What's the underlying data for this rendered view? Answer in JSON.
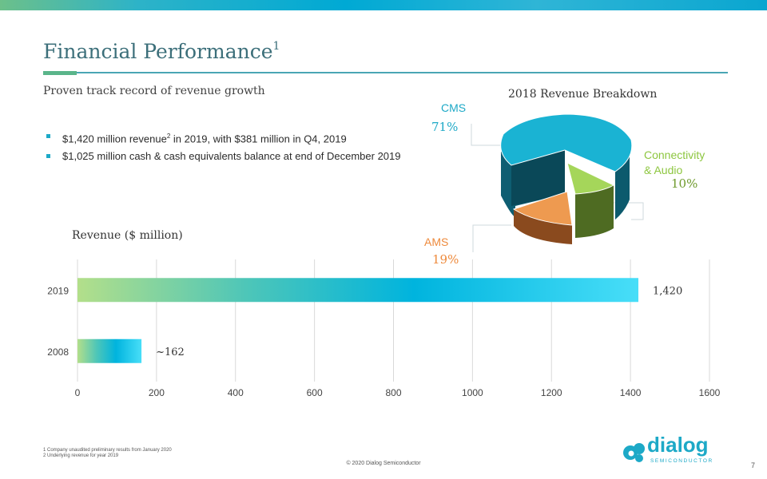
{
  "slide": {
    "title": "Financial Performance",
    "title_superscript": "1",
    "subtitle": "Proven track record of revenue growth",
    "bullets": [
      {
        "pre": "$1,420 million revenue",
        "sup": "2",
        "post": " in 2019, with $381 million in Q4, 2019"
      },
      {
        "pre": "$1,025 million cash & cash equivalents balance at end of December 2019",
        "sup": "",
        "post": ""
      }
    ]
  },
  "pie": {
    "title": "2018 Revenue Breakdown",
    "segments": [
      {
        "name": "CMS",
        "percent_label": "71%",
        "value": 71,
        "color": "#1ab3d3"
      },
      {
        "name_line1": "Connectivity",
        "name_line2": "& Audio",
        "percent_label": "10%",
        "value": 10,
        "color": "#a5d65a"
      },
      {
        "name": "AMS",
        "percent_label": "19%",
        "value": 19,
        "color": "#ee9a50"
      }
    ]
  },
  "chart_data": {
    "type": "bar",
    "orientation": "horizontal",
    "title": "Revenue ($ million)",
    "categories": [
      "2019",
      "2008"
    ],
    "values": [
      1420,
      162
    ],
    "data_labels": [
      "1,420",
      "~162"
    ],
    "xlim": [
      0,
      1600
    ],
    "x_ticks": [
      "0",
      "200",
      "400",
      "600",
      "800",
      "1000",
      "1200",
      "1400",
      "1600"
    ],
    "grid": "vertical"
  },
  "footer": {
    "note1": "1 Company unaudited preliminary results from January 2020",
    "note2": "2 Underlying revenue for year 2019",
    "copyright": "© 2020 Dialog Semiconductor",
    "page_number": "7",
    "logo_word": "dialog",
    "logo_sub": "SEMICONDUCTOR"
  },
  "colors": {
    "accent": "#1da9c7",
    "green": "#7cb342",
    "orange": "#ee8a3c",
    "title": "#3c6f7a"
  }
}
